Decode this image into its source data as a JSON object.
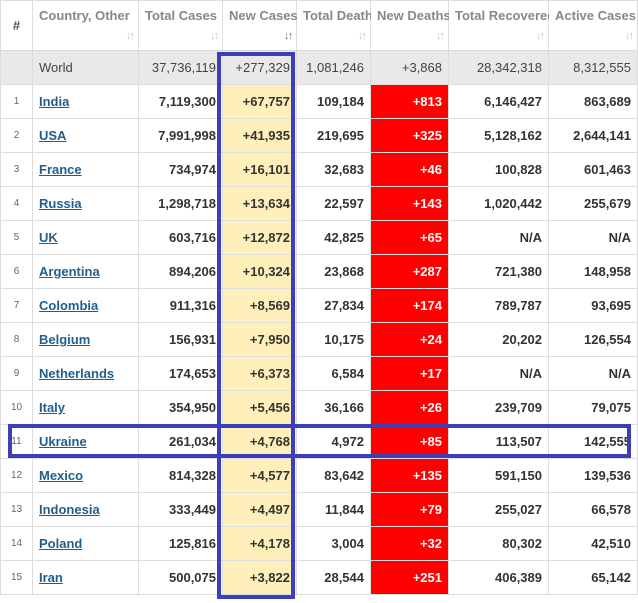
{
  "headers": [
    {
      "label": "#",
      "sortable": false
    },
    {
      "label": "Country, Other",
      "sortable": true
    },
    {
      "label": "Total Cases",
      "sortable": true
    },
    {
      "label": "New Cases",
      "sortable": true
    },
    {
      "label": "Total Deaths",
      "sortable": true
    },
    {
      "label": "New Deaths",
      "sortable": true
    },
    {
      "label": "Total Recovered",
      "sortable": true
    },
    {
      "label": "Active Cases",
      "sortable": true
    }
  ],
  "world": {
    "num": "",
    "country": "World",
    "total_cases": "37,736,119",
    "new_cases": "+277,329",
    "total_deaths": "1,081,246",
    "new_deaths": "+3,868",
    "total_recovered": "28,342,318",
    "active_cases": "8,312,555"
  },
  "rows": [
    {
      "num": "1",
      "country": "India",
      "total_cases": "7,119,300",
      "new_cases": "+67,757",
      "total_deaths": "109,184",
      "new_deaths": "+813",
      "total_recovered": "6,146,427",
      "active_cases": "863,689"
    },
    {
      "num": "2",
      "country": "USA",
      "total_cases": "7,991,998",
      "new_cases": "+41,935",
      "total_deaths": "219,695",
      "new_deaths": "+325",
      "total_recovered": "5,128,162",
      "active_cases": "2,644,141"
    },
    {
      "num": "3",
      "country": "France",
      "total_cases": "734,974",
      "new_cases": "+16,101",
      "total_deaths": "32,683",
      "new_deaths": "+46",
      "total_recovered": "100,828",
      "active_cases": "601,463"
    },
    {
      "num": "4",
      "country": "Russia",
      "total_cases": "1,298,718",
      "new_cases": "+13,634",
      "total_deaths": "22,597",
      "new_deaths": "+143",
      "total_recovered": "1,020,442",
      "active_cases": "255,679"
    },
    {
      "num": "5",
      "country": "UK",
      "total_cases": "603,716",
      "new_cases": "+12,872",
      "total_deaths": "42,825",
      "new_deaths": "+65",
      "total_recovered": "N/A",
      "active_cases": "N/A"
    },
    {
      "num": "6",
      "country": "Argentina",
      "total_cases": "894,206",
      "new_cases": "+10,324",
      "total_deaths": "23,868",
      "new_deaths": "+287",
      "total_recovered": "721,380",
      "active_cases": "148,958"
    },
    {
      "num": "7",
      "country": "Colombia",
      "total_cases": "911,316",
      "new_cases": "+8,569",
      "total_deaths": "27,834",
      "new_deaths": "+174",
      "total_recovered": "789,787",
      "active_cases": "93,695"
    },
    {
      "num": "8",
      "country": "Belgium",
      "total_cases": "156,931",
      "new_cases": "+7,950",
      "total_deaths": "10,175",
      "new_deaths": "+24",
      "total_recovered": "20,202",
      "active_cases": "126,554"
    },
    {
      "num": "9",
      "country": "Netherlands",
      "total_cases": "174,653",
      "new_cases": "+6,373",
      "total_deaths": "6,584",
      "new_deaths": "+17",
      "total_recovered": "N/A",
      "active_cases": "N/A"
    },
    {
      "num": "10",
      "country": "Italy",
      "total_cases": "354,950",
      "new_cases": "+5,456",
      "total_deaths": "36,166",
      "new_deaths": "+26",
      "total_recovered": "239,709",
      "active_cases": "79,075"
    },
    {
      "num": "11",
      "country": "Ukraine",
      "total_cases": "261,034",
      "new_cases": "+4,768",
      "total_deaths": "4,972",
      "new_deaths": "+85",
      "total_recovered": "113,507",
      "active_cases": "142,555"
    },
    {
      "num": "12",
      "country": "Mexico",
      "total_cases": "814,328",
      "new_cases": "+4,577",
      "total_deaths": "83,642",
      "new_deaths": "+135",
      "total_recovered": "591,150",
      "active_cases": "139,536"
    },
    {
      "num": "13",
      "country": "Indonesia",
      "total_cases": "333,449",
      "new_cases": "+4,497",
      "total_deaths": "11,844",
      "new_deaths": "+79",
      "total_recovered": "255,027",
      "active_cases": "66,578"
    },
    {
      "num": "14",
      "country": "Poland",
      "total_cases": "125,816",
      "new_cases": "+4,178",
      "total_deaths": "3,004",
      "new_deaths": "+32",
      "total_recovered": "80,302",
      "active_cases": "42,510"
    },
    {
      "num": "15",
      "country": "Iran",
      "total_cases": "500,075",
      "new_cases": "+3,822",
      "total_deaths": "28,544",
      "new_deaths": "+251",
      "total_recovered": "406,389",
      "active_cases": "65,142"
    }
  ],
  "colors": {
    "new_cases_bg": "#fff0bb",
    "new_deaths_bg": "#ff0000",
    "highlight_box": "#3b3fb8",
    "link": "#1f5f8f",
    "world_row_bg": "#e9e9e9"
  },
  "icons": {
    "sort": "sort-arrows-icon"
  }
}
